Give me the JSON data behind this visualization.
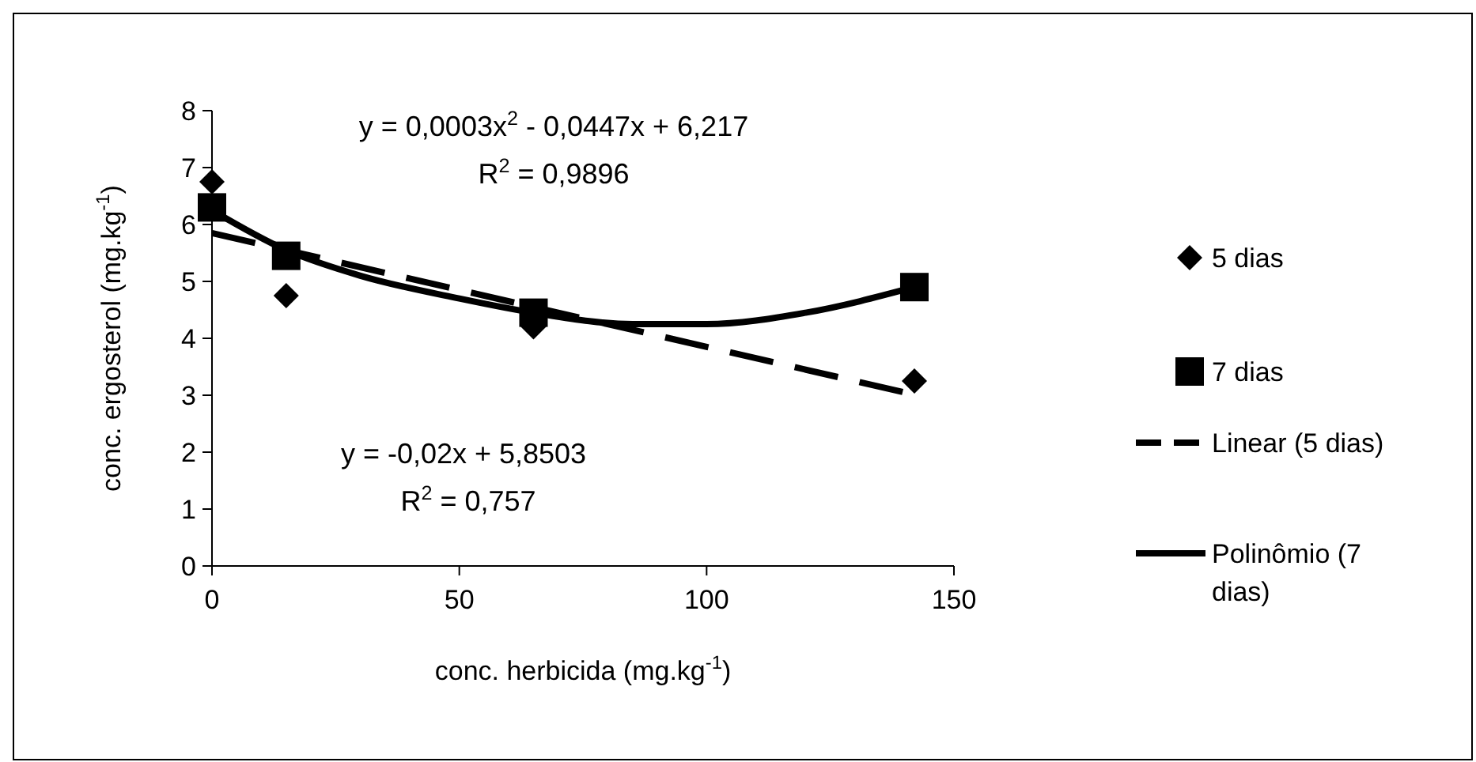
{
  "chart_data": {
    "type": "scatter",
    "xlabel": "conc. herbicida (mg.kg$^{-1}$)",
    "ylabel": "conc. ergosterol (mg.kg$^{-1}$)",
    "xlim": [
      0,
      150
    ],
    "xticks": [
      0,
      50,
      100,
      150
    ],
    "ylim": [
      0,
      8
    ],
    "yticks": [
      0,
      1,
      2,
      3,
      4,
      5,
      6,
      7,
      8
    ],
    "grid": false,
    "legend": "right",
    "annotations": [
      "y = 0,0003x$^{2}$ - 0,0447x + 6,217",
      "R$^{2}$ = 0,9896",
      "y = -0,02x + 5,8503",
      "R$^{2}$ = 0,757"
    ],
    "series": [
      {
        "name": "5 dias",
        "marker": "diamond",
        "color": "#000000",
        "x": [
          0,
          15,
          65,
          142
        ],
        "values": [
          6.75,
          4.75,
          4.2,
          3.25
        ]
      },
      {
        "name": "7 dias",
        "marker": "square",
        "color": "#000000",
        "x": [
          0,
          15,
          65,
          142
        ],
        "values": [
          6.3,
          5.45,
          4.45,
          4.9
        ]
      },
      {
        "name": "Linear (5 dias)",
        "type": "line",
        "line_style": "dashed",
        "marker": "none",
        "color": "#000000",
        "x": [
          0,
          142
        ],
        "values": [
          5.85,
          3.01
        ]
      },
      {
        "name": "Polinômio (7 dias)",
        "type": "line",
        "line_style": "solid",
        "marker": "none",
        "color": "#000000",
        "x": [
          0,
          15,
          30,
          50,
          65,
          85,
          100,
          120,
          142
        ],
        "values": [
          6.25,
          5.55,
          5.1,
          4.7,
          4.45,
          4.25,
          4.25,
          4.45,
          4.9
        ]
      }
    ]
  }
}
